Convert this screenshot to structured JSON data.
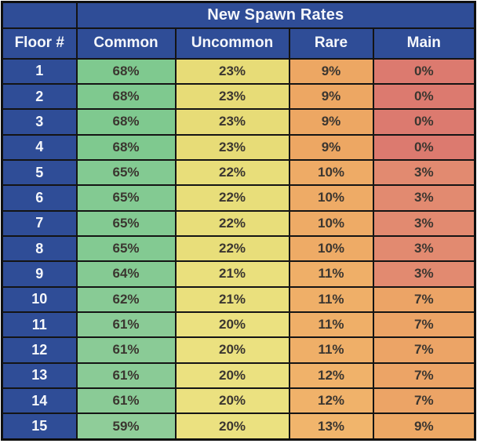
{
  "title": "New Spawn Rates",
  "columns": [
    "Floor #",
    "Common",
    "Uncommon",
    "Rare",
    "Main"
  ],
  "column_keys": [
    "common",
    "uncommon",
    "rare",
    "main"
  ],
  "colors": {
    "header_bg": "#2f4d97",
    "header_text": "#f5f7fb",
    "border": "#141414",
    "cell_text": "#3b3630",
    "page_bg": "#ffffff"
  },
  "rows": [
    {
      "floor": "1",
      "values": [
        {
          "text": "68%",
          "bg": "#7fc98f"
        },
        {
          "text": "23%",
          "bg": "#e7dc77"
        },
        {
          "text": "9%",
          "bg": "#eda763"
        },
        {
          "text": "0%",
          "bg": "#dc7a6f"
        }
      ]
    },
    {
      "floor": "2",
      "values": [
        {
          "text": "68%",
          "bg": "#7fc98f"
        },
        {
          "text": "23%",
          "bg": "#e7dc77"
        },
        {
          "text": "9%",
          "bg": "#eda763"
        },
        {
          "text": "0%",
          "bg": "#dc7a6f"
        }
      ]
    },
    {
      "floor": "3",
      "values": [
        {
          "text": "68%",
          "bg": "#7fc98f"
        },
        {
          "text": "23%",
          "bg": "#e7dc77"
        },
        {
          "text": "9%",
          "bg": "#eda763"
        },
        {
          "text": "0%",
          "bg": "#dc7a6f"
        }
      ]
    },
    {
      "floor": "4",
      "values": [
        {
          "text": "68%",
          "bg": "#7fc98f"
        },
        {
          "text": "23%",
          "bg": "#e7dc77"
        },
        {
          "text": "9%",
          "bg": "#eda763"
        },
        {
          "text": "0%",
          "bg": "#dc7a6f"
        }
      ]
    },
    {
      "floor": "5",
      "values": [
        {
          "text": "65%",
          "bg": "#83ca92"
        },
        {
          "text": "22%",
          "bg": "#e8de7a"
        },
        {
          "text": "10%",
          "bg": "#eeab66"
        },
        {
          "text": "3%",
          "bg": "#e28a70"
        }
      ]
    },
    {
      "floor": "6",
      "values": [
        {
          "text": "65%",
          "bg": "#83ca92"
        },
        {
          "text": "22%",
          "bg": "#e8de7a"
        },
        {
          "text": "10%",
          "bg": "#eeab66"
        },
        {
          "text": "3%",
          "bg": "#e28a70"
        }
      ]
    },
    {
      "floor": "7",
      "values": [
        {
          "text": "65%",
          "bg": "#83ca92"
        },
        {
          "text": "22%",
          "bg": "#e8de7a"
        },
        {
          "text": "10%",
          "bg": "#eeab66"
        },
        {
          "text": "3%",
          "bg": "#e28a70"
        }
      ]
    },
    {
      "floor": "8",
      "values": [
        {
          "text": "65%",
          "bg": "#83ca92"
        },
        {
          "text": "22%",
          "bg": "#e8de7a"
        },
        {
          "text": "10%",
          "bg": "#eeab66"
        },
        {
          "text": "3%",
          "bg": "#e28a70"
        }
      ]
    },
    {
      "floor": "9",
      "values": [
        {
          "text": "64%",
          "bg": "#85ca93"
        },
        {
          "text": "21%",
          "bg": "#eae07d"
        },
        {
          "text": "11%",
          "bg": "#efaf68"
        },
        {
          "text": "3%",
          "bg": "#e28a70"
        }
      ]
    },
    {
      "floor": "10",
      "values": [
        {
          "text": "62%",
          "bg": "#88cb95"
        },
        {
          "text": "21%",
          "bg": "#eae07d"
        },
        {
          "text": "11%",
          "bg": "#efaf68"
        },
        {
          "text": "7%",
          "bg": "#eca466"
        }
      ]
    },
    {
      "floor": "11",
      "values": [
        {
          "text": "61%",
          "bg": "#8acb96"
        },
        {
          "text": "20%",
          "bg": "#ebe180"
        },
        {
          "text": "11%",
          "bg": "#efaf68"
        },
        {
          "text": "7%",
          "bg": "#eca466"
        }
      ]
    },
    {
      "floor": "12",
      "values": [
        {
          "text": "61%",
          "bg": "#8acb96"
        },
        {
          "text": "20%",
          "bg": "#ebe180"
        },
        {
          "text": "11%",
          "bg": "#efaf68"
        },
        {
          "text": "7%",
          "bg": "#eca466"
        }
      ]
    },
    {
      "floor": "13",
      "values": [
        {
          "text": "61%",
          "bg": "#8acb96"
        },
        {
          "text": "20%",
          "bg": "#ebe180"
        },
        {
          "text": "12%",
          "bg": "#f0b26a"
        },
        {
          "text": "7%",
          "bg": "#eca466"
        }
      ]
    },
    {
      "floor": "14",
      "values": [
        {
          "text": "61%",
          "bg": "#8acb96"
        },
        {
          "text": "20%",
          "bg": "#ebe180"
        },
        {
          "text": "12%",
          "bg": "#f0b26a"
        },
        {
          "text": "7%",
          "bg": "#eca466"
        }
      ]
    },
    {
      "floor": "15",
      "values": [
        {
          "text": "59%",
          "bg": "#8fcd99"
        },
        {
          "text": "20%",
          "bg": "#ebe180"
        },
        {
          "text": "13%",
          "bg": "#f1b56c"
        },
        {
          "text": "9%",
          "bg": "#eda865"
        }
      ]
    }
  ],
  "chart_data": {
    "type": "table",
    "title": "New Spawn Rates",
    "columns": [
      "Floor #",
      "Common",
      "Uncommon",
      "Rare",
      "Main"
    ],
    "x": [
      1,
      2,
      3,
      4,
      5,
      6,
      7,
      8,
      9,
      10,
      11,
      12,
      13,
      14,
      15
    ],
    "xlabel": "Floor #",
    "unit": "%",
    "series": [
      {
        "name": "Common",
        "values": [
          68,
          68,
          68,
          68,
          65,
          65,
          65,
          65,
          64,
          62,
          61,
          61,
          61,
          61,
          59
        ]
      },
      {
        "name": "Uncommon",
        "values": [
          23,
          23,
          23,
          23,
          22,
          22,
          22,
          22,
          21,
          21,
          20,
          20,
          20,
          20,
          20
        ]
      },
      {
        "name": "Rare",
        "values": [
          9,
          9,
          9,
          9,
          10,
          10,
          10,
          10,
          11,
          11,
          11,
          11,
          12,
          12,
          13
        ]
      },
      {
        "name": "Main",
        "values": [
          0,
          0,
          0,
          0,
          3,
          3,
          3,
          3,
          3,
          7,
          7,
          7,
          7,
          7,
          9
        ]
      }
    ],
    "layout_hints": {
      "header_color": "#2f4d97",
      "cell_color_scale": "red-yellow-green by value (low=red, high=green)",
      "grid": "black cell borders"
    }
  }
}
